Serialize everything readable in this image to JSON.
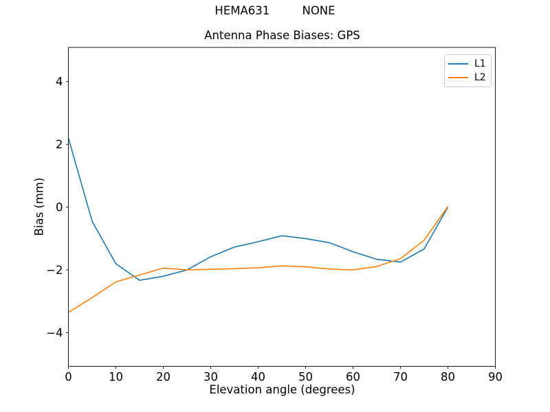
{
  "chart_data": {
    "type": "line",
    "suptitle": "HEMA631         NONE",
    "title": "Antenna Phase Biases: GPS",
    "xlabel": "Elevation angle (degrees)",
    "ylabel": "Bias (mm)",
    "xlim": [
      0,
      90
    ],
    "ylim": [
      -5.07,
      5.09
    ],
    "grid": false,
    "legend_position": "upper right",
    "xticks": [
      {
        "v": 0,
        "label": "0"
      },
      {
        "v": 10,
        "label": "10"
      },
      {
        "v": 20,
        "label": "20"
      },
      {
        "v": 30,
        "label": "30"
      },
      {
        "v": 40,
        "label": "40"
      },
      {
        "v": 50,
        "label": "50"
      },
      {
        "v": 60,
        "label": "60"
      },
      {
        "v": 70,
        "label": "70"
      },
      {
        "v": 80,
        "label": "80"
      },
      {
        "v": 90,
        "label": "90"
      }
    ],
    "yticks": [
      {
        "v": -4,
        "label": "−4"
      },
      {
        "v": -2,
        "label": "−2"
      },
      {
        "v": 0,
        "label": "0"
      },
      {
        "v": 2,
        "label": "2"
      },
      {
        "v": 4,
        "label": "4"
      }
    ],
    "x": [
      0,
      5,
      10,
      15,
      20,
      25,
      30,
      35,
      40,
      45,
      50,
      55,
      60,
      65,
      70,
      75,
      80
    ],
    "series": [
      {
        "name": "L1",
        "color": "#1f77b4",
        "values": [
          2.2,
          -0.45,
          -1.8,
          -2.33,
          -2.2,
          -2.0,
          -1.58,
          -1.27,
          -1.1,
          -0.91,
          -1.0,
          -1.13,
          -1.42,
          -1.66,
          -1.75,
          -1.33,
          0.0
        ]
      },
      {
        "name": "L2",
        "color": "#ff7f0e",
        "values": [
          -3.35,
          -2.88,
          -2.38,
          -2.16,
          -1.94,
          -2.0,
          -1.98,
          -1.96,
          -1.93,
          -1.87,
          -1.9,
          -1.97,
          -2.0,
          -1.89,
          -1.64,
          -1.05,
          0.02
        ]
      }
    ],
    "axis_color": "#000000"
  }
}
